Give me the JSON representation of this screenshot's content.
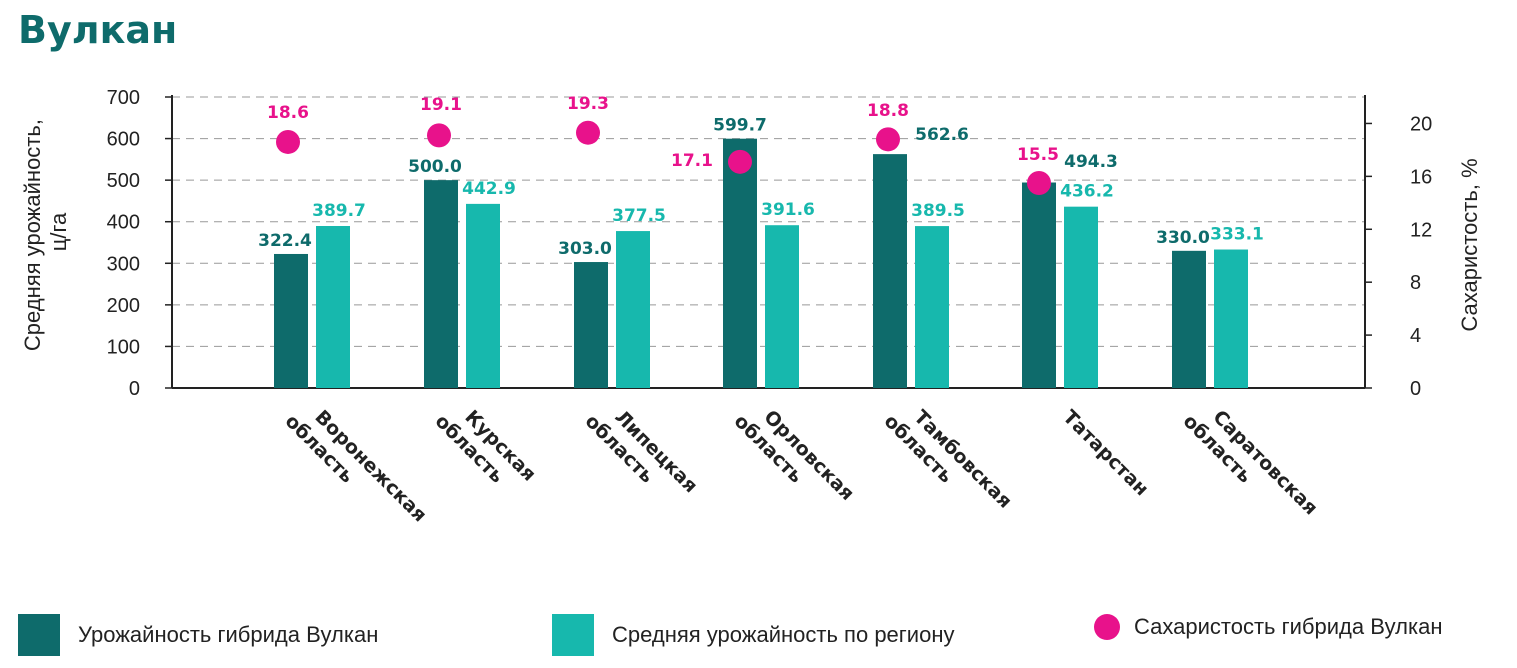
{
  "title": "Вулкан",
  "colors": {
    "hybrid": "#0e6b6b",
    "regional": "#17b8ad",
    "sugar": "#e8128b"
  },
  "legend": {
    "hybrid": "Урожайность гибрида Вулкан",
    "regional": "Средняя урожайность по региону",
    "sugar": "Сахаристость гибрида Вулкан"
  },
  "chart_data": {
    "type": "bar",
    "title": "Вулкан",
    "categories": [
      [
        "Воронежская",
        "область"
      ],
      [
        "Курская",
        "область"
      ],
      [
        "Липецкая",
        "область"
      ],
      [
        "Орловская",
        "область"
      ],
      [
        "Тамбовская",
        "область"
      ],
      [
        "Татарстан"
      ],
      [
        "Саратовская",
        "область"
      ]
    ],
    "series": [
      {
        "name": "Урожайность гибрида Вулкан",
        "axis": "left",
        "values": [
          322.4,
          500.0,
          303.0,
          599.7,
          562.6,
          494.3,
          330.0
        ]
      },
      {
        "name": "Средняя урожайность по региону",
        "axis": "left",
        "values": [
          389.7,
          442.9,
          377.5,
          391.6,
          389.5,
          436.2,
          333.1
        ]
      },
      {
        "name": "Сахаристость гибрида Вулкан",
        "axis": "right",
        "type": "scatter",
        "values": [
          18.6,
          19.1,
          19.3,
          17.1,
          18.8,
          15.5,
          null
        ]
      }
    ],
    "ylabel": [
      "Средняя урожайность,",
      "ц/га"
    ],
    "ylabel_right": "Сахаристость, %",
    "ylim": [
      0,
      700
    ],
    "yticks": [
      "0",
      "100",
      "200",
      "300",
      "400",
      "500",
      "600",
      "700"
    ],
    "ylim_right": [
      0,
      22
    ],
    "yticks_right": [
      "0",
      "4",
      "8",
      "12",
      "16",
      "20"
    ],
    "grid": true,
    "legend_position": "bottom"
  }
}
